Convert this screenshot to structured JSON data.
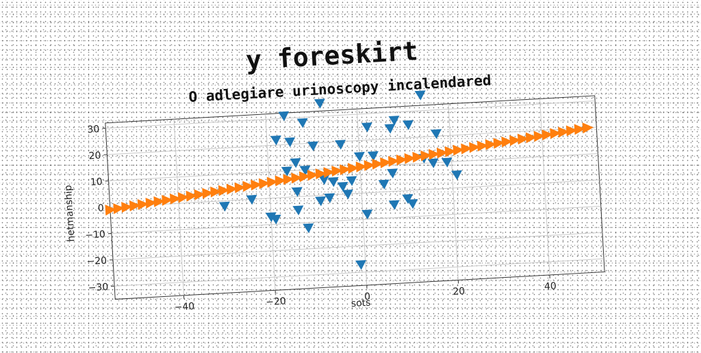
{
  "chart_data": {
    "type": "scatter",
    "title": "y foreskirt",
    "subtitle": "O adlegiare urinoscopy incalendared",
    "xlabel": "sots",
    "ylabel": "hetmanship",
    "xlim": [
      -55,
      52
    ],
    "ylim": [
      -35,
      32
    ],
    "xticks": [
      -40,
      -20,
      0,
      20,
      40
    ],
    "yticks": [
      -30,
      -20,
      -10,
      0,
      10,
      20,
      30
    ],
    "grid": true,
    "series": [
      {
        "marker": "triangle-down",
        "color": "#1f77b4",
        "points": [
          [
            -8,
            35
          ],
          [
            14,
            36
          ],
          [
            -16,
            31
          ],
          [
            -12,
            28
          ],
          [
            -18,
            22
          ],
          [
            -15,
            21
          ],
          [
            -10,
            19
          ],
          [
            -4,
            19
          ],
          [
            2,
            25
          ],
          [
            8,
            27
          ],
          [
            11,
            25
          ],
          [
            7,
            24
          ],
          [
            17,
            21
          ],
          [
            -14,
            13
          ],
          [
            -16,
            10
          ],
          [
            -12,
            10
          ],
          [
            0,
            14
          ],
          [
            3,
            14
          ],
          [
            -8,
            6
          ],
          [
            -6,
            5
          ],
          [
            -4,
            3
          ],
          [
            -2,
            5
          ],
          [
            -9,
            -2
          ],
          [
            -7,
            -1
          ],
          [
            -3,
            0
          ],
          [
            -14,
            2
          ],
          [
            -30,
            -2
          ],
          [
            -24,
            0
          ],
          [
            -20,
            -7
          ],
          [
            -19,
            -8
          ],
          [
            -14,
            -5
          ],
          [
            -12,
            -12
          ],
          [
            5,
            3
          ],
          [
            7,
            7
          ],
          [
            16,
            10
          ],
          [
            14,
            12
          ],
          [
            19,
            10
          ],
          [
            21,
            5
          ],
          [
            10,
            -3
          ],
          [
            7,
            -5
          ],
          [
            11,
            -5
          ],
          [
            1,
            -8
          ],
          [
            -1,
            -27
          ]
        ]
      },
      {
        "marker": "triangle-right",
        "color": "#ff7f0e",
        "line": {
          "x_start": -55,
          "x_end": 50,
          "y_at_zero": 10,
          "slope": 0.2,
          "count": 60
        }
      }
    ]
  }
}
